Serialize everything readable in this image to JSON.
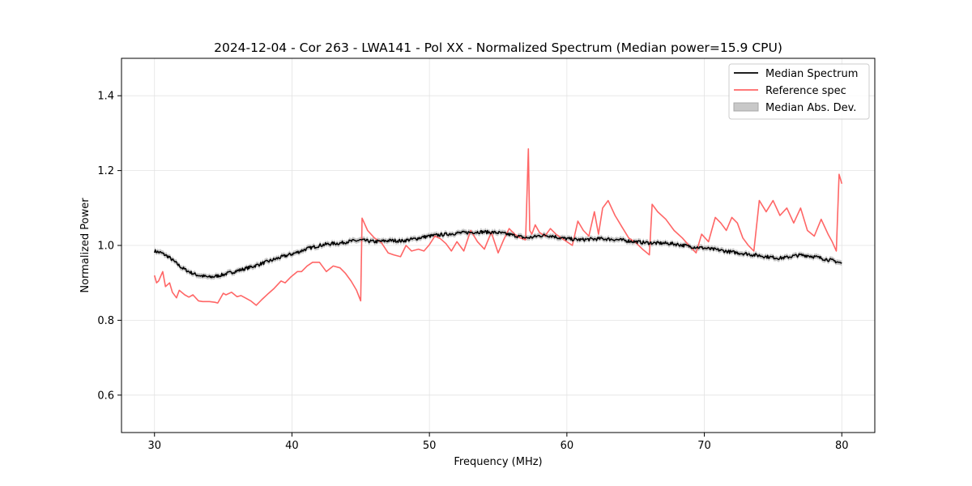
{
  "chart_data": {
    "type": "line",
    "title": "2024-12-04 - Cor 263 - LWA141 - Pol XX - Normalized Spectrum (Median power=15.9 CPU)",
    "xlabel": "Frequency (MHz)",
    "ylabel": "Normalized Power",
    "xlim": [
      27.6,
      82.4
    ],
    "ylim": [
      0.5,
      1.5
    ],
    "xticks": [
      30,
      40,
      50,
      60,
      70,
      80
    ],
    "yticks": [
      0.6,
      0.8,
      1.0,
      1.2,
      1.4
    ],
    "xtick_labels": [
      "30",
      "40",
      "50",
      "60",
      "70",
      "80"
    ],
    "ytick_labels": [
      "0.6",
      "0.8",
      "1.0",
      "1.2",
      "1.4"
    ],
    "grid": true,
    "legend_position": "top-right",
    "series": [
      {
        "name": "Median Spectrum",
        "color": "#000000",
        "x": [
          30,
          30.5,
          31,
          31.5,
          32,
          32.5,
          33,
          33.5,
          34,
          34.5,
          35,
          35.5,
          36,
          36.5,
          37,
          37.5,
          38,
          38.5,
          39,
          39.5,
          40,
          40.5,
          41,
          41.5,
          42,
          42.5,
          43,
          43.5,
          44,
          44.5,
          45,
          45.5,
          46,
          46.5,
          47,
          47.5,
          48,
          48.5,
          49,
          49.5,
          50,
          50.5,
          51,
          51.5,
          52,
          52.5,
          53,
          53.5,
          54,
          54.5,
          55,
          55.5,
          56,
          56.5,
          57,
          57.5,
          58,
          58.5,
          59,
          59.5,
          60,
          60.5,
          61,
          61.5,
          62,
          62.5,
          63,
          63.5,
          64,
          64.5,
          65,
          65.5,
          66,
          66.5,
          67,
          67.5,
          68,
          68.5,
          69,
          69.5,
          70,
          70.5,
          71,
          71.5,
          72,
          72.5,
          73,
          73.5,
          74,
          74.5,
          75,
          75.5,
          76,
          76.5,
          77,
          77.5,
          78,
          78.5,
          79,
          79.5,
          80
        ],
        "values": [
          0.985,
          0.98,
          0.97,
          0.955,
          0.94,
          0.93,
          0.922,
          0.918,
          0.915,
          0.918,
          0.922,
          0.927,
          0.932,
          0.937,
          0.942,
          0.948,
          0.954,
          0.96,
          0.966,
          0.972,
          0.977,
          0.983,
          0.99,
          0.995,
          1.0,
          1.003,
          1.005,
          1.006,
          1.01,
          1.012,
          1.014,
          1.012,
          1.01,
          1.011,
          1.013,
          1.013,
          1.012,
          1.015,
          1.018,
          1.022,
          1.025,
          1.027,
          1.029,
          1.031,
          1.033,
          1.034,
          1.035,
          1.036,
          1.036,
          1.035,
          1.034,
          1.031,
          1.028,
          1.024,
          1.02,
          1.022,
          1.026,
          1.027,
          1.025,
          1.02,
          1.018,
          1.016,
          1.015,
          1.016,
          1.017,
          1.018,
          1.017,
          1.016,
          1.014,
          1.012,
          1.01,
          1.008,
          1.007,
          1.006,
          1.006,
          1.005,
          1.003,
          1.0,
          0.997,
          0.995,
          0.993,
          0.99,
          0.988,
          0.985,
          0.982,
          0.98,
          0.978,
          0.975,
          0.973,
          0.97,
          0.968,
          0.966,
          0.968,
          0.972,
          0.974,
          0.973,
          0.97,
          0.966,
          0.962,
          0.958,
          0.952
        ]
      },
      {
        "name": "Reference spec",
        "color": "#ff6666",
        "x": [
          30,
          30.15,
          30.3,
          30.6,
          30.8,
          31.1,
          31.3,
          31.6,
          31.8,
          32.2,
          32.5,
          32.8,
          33.2,
          33.5,
          34,
          34.4,
          34.6,
          35,
          35.2,
          35.6,
          36,
          36.3,
          36.6,
          37,
          37.4,
          37.8,
          38.3,
          38.7,
          39.2,
          39.5,
          39.9,
          40.4,
          40.7,
          41.1,
          41.5,
          42,
          42.5,
          43,
          43.5,
          43.9,
          44.3,
          44.7,
          45,
          45.1,
          45.5,
          46,
          46.5,
          47,
          47.4,
          47.9,
          48.3,
          48.7,
          49.2,
          49.6,
          50,
          50.4,
          50.8,
          51.2,
          51.6,
          52,
          52.5,
          53,
          53.5,
          54,
          54.5,
          55,
          55.4,
          55.8,
          56.2,
          56.6,
          57,
          57.2,
          57.3,
          57.45,
          57.7,
          58,
          58.4,
          58.8,
          59.2,
          59.6,
          60,
          60.4,
          60.8,
          61.2,
          61.6,
          62,
          62.3,
          62.6,
          63,
          63.5,
          64,
          64.5,
          65,
          65.5,
          66,
          66.2,
          66.6,
          67.2,
          67.8,
          68.4,
          69,
          69.4,
          69.8,
          70.3,
          70.8,
          71.2,
          71.6,
          72,
          72.4,
          72.8,
          73.2,
          73.6,
          74,
          74.5,
          75,
          75.5,
          76,
          76.5,
          77,
          77.5,
          78,
          78.5,
          79,
          79.3,
          79.6,
          79.8,
          80
        ],
        "values": [
          0.92,
          0.9,
          0.905,
          0.93,
          0.89,
          0.9,
          0.875,
          0.86,
          0.88,
          0.868,
          0.862,
          0.868,
          0.852,
          0.85,
          0.85,
          0.848,
          0.846,
          0.872,
          0.868,
          0.875,
          0.863,
          0.866,
          0.86,
          0.852,
          0.84,
          0.855,
          0.872,
          0.885,
          0.905,
          0.9,
          0.915,
          0.93,
          0.93,
          0.945,
          0.955,
          0.955,
          0.93,
          0.945,
          0.94,
          0.925,
          0.905,
          0.88,
          0.852,
          1.073,
          1.04,
          1.02,
          1.008,
          0.98,
          0.975,
          0.97,
          1.0,
          0.985,
          0.99,
          0.985,
          1.002,
          1.025,
          1.018,
          1.005,
          0.985,
          1.01,
          0.985,
          1.04,
          1.01,
          0.99,
          1.035,
          0.98,
          1.015,
          1.045,
          1.03,
          1.02,
          1.015,
          1.258,
          1.04,
          1.03,
          1.055,
          1.035,
          1.025,
          1.045,
          1.03,
          1.02,
          1.01,
          1.0,
          1.065,
          1.04,
          1.025,
          1.09,
          1.03,
          1.1,
          1.12,
          1.08,
          1.05,
          1.02,
          1.008,
          0.99,
          0.975,
          1.11,
          1.09,
          1.07,
          1.04,
          1.02,
          0.995,
          0.98,
          1.03,
          1.01,
          1.075,
          1.06,
          1.04,
          1.075,
          1.06,
          1.02,
          1.0,
          0.985,
          1.12,
          1.09,
          1.12,
          1.08,
          1.1,
          1.06,
          1.1,
          1.04,
          1.025,
          1.07,
          1.03,
          1.01,
          0.985,
          1.19,
          1.165
        ]
      },
      {
        "name": "Median Abs. Dev.",
        "color": "#bbbbbb",
        "band_half_width": 0.007
      }
    ]
  }
}
